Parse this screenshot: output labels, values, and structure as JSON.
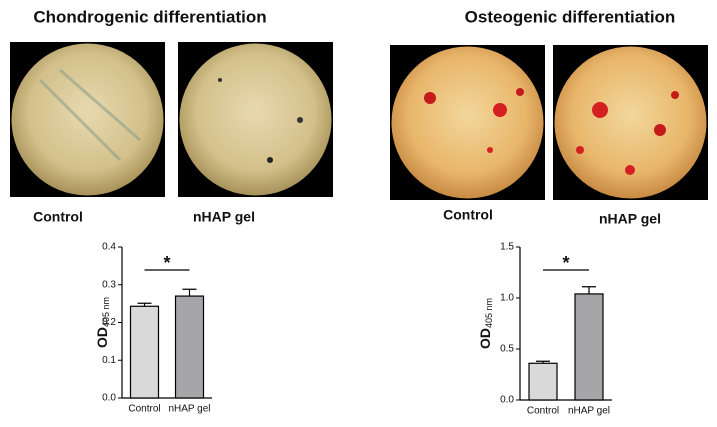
{
  "panels": [
    {
      "title": "Chondrogenic differentiation",
      "image_labels": [
        "Control",
        "nHAP gel"
      ]
    },
    {
      "title": "Osteogenic differentiation",
      "image_labels": [
        "Control",
        "nHAP gel"
      ]
    }
  ],
  "chart_data": [
    {
      "type": "bar",
      "y_label": "OD",
      "y_label_sub": "405 nm",
      "categories": [
        "Control",
        "nHAP gel"
      ],
      "values": [
        0.243,
        0.27
      ],
      "errors": [
        0.008,
        0.018
      ],
      "colors": [
        "#d9d9d9",
        "#a6a6a8"
      ],
      "significance": "*",
      "ylim": [
        0,
        0.4
      ],
      "yticks": [
        {
          "value": 0,
          "label": "0.0"
        },
        0.1,
        0.2,
        0.3,
        0.4
      ]
    },
    {
      "type": "bar",
      "y_label": "OD",
      "y_label_sub": "405 nm",
      "categories": [
        "Control",
        "nHAP gel"
      ],
      "values": [
        0.36,
        1.04
      ],
      "errors": [
        0.02,
        0.07
      ],
      "colors": [
        "#d9d9d9",
        "#a6a6a8"
      ],
      "significance": "*",
      "ylim": [
        0,
        1.5
      ],
      "yticks": [
        {
          "value": 0,
          "label": "0.0"
        },
        0.5,
        {
          "value": 1,
          "label": "1.0"
        },
        1.5
      ]
    }
  ]
}
